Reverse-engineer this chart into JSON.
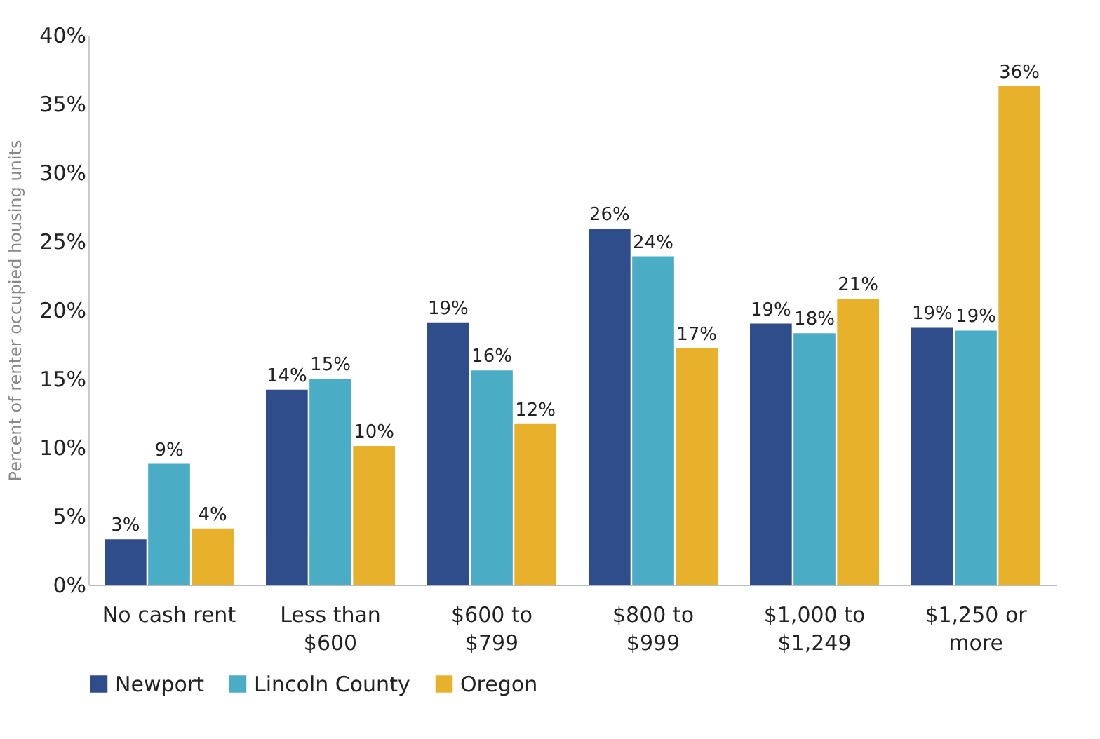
{
  "chart_data": {
    "type": "bar",
    "ylabel": "Percent of renter occupied housing units",
    "categories": [
      "No cash rent",
      "Less than\n$600",
      "$600 to\n$799",
      "$800 to\n$999",
      "$1,000 to\n$1,249",
      "$1,250 or\nmore"
    ],
    "series": [
      {
        "name": "Newport",
        "color": "#2e4d8a",
        "values": [
          3.3,
          14.2,
          19.1,
          25.9,
          19.0,
          18.7
        ],
        "value_labels": [
          "3%",
          "14%",
          "19%",
          "26%",
          "19%",
          "19%"
        ]
      },
      {
        "name": "Lincoln County",
        "color": "#4bacc6",
        "values": [
          8.8,
          15.0,
          15.6,
          23.9,
          18.3,
          18.5
        ],
        "value_labels": [
          "9%",
          "15%",
          "16%",
          "24%",
          "18%",
          "19%"
        ]
      },
      {
        "name": "Oregon",
        "color": "#e8b12b",
        "values": [
          4.1,
          10.1,
          11.7,
          17.2,
          20.8,
          36.3
        ],
        "value_labels": [
          "4%",
          "10%",
          "12%",
          "17%",
          "21%",
          "36%"
        ]
      }
    ],
    "ylim": [
      0,
      40
    ],
    "yticks": [
      {
        "value": 0,
        "label": "0%"
      },
      {
        "value": 5,
        "label": "5%"
      },
      {
        "value": 10,
        "label": "10%"
      },
      {
        "value": 15,
        "label": "15%"
      },
      {
        "value": 20,
        "label": "20%"
      },
      {
        "value": 25,
        "label": "25%"
      },
      {
        "value": 30,
        "label": "30%"
      },
      {
        "value": 35,
        "label": "35%"
      },
      {
        "value": 40,
        "label": "40%"
      }
    ],
    "grid": false,
    "legend": "bottom"
  }
}
